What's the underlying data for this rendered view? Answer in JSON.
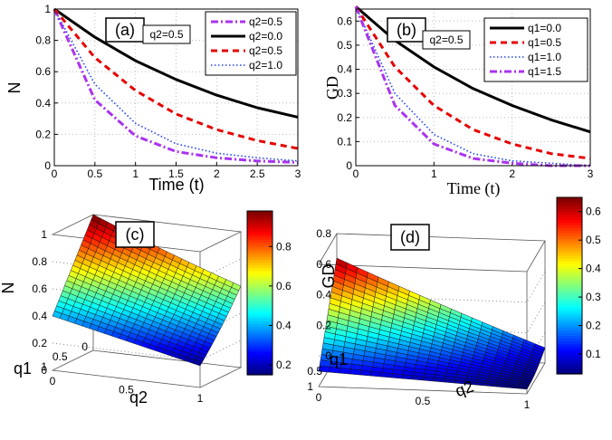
{
  "chart_data": [
    {
      "panel": "(a)",
      "type": "line",
      "annotation": "q2=0.5",
      "xlabel": "Time (t)",
      "ylabel": "N",
      "xlim": [
        0,
        3
      ],
      "ylim": [
        0,
        1
      ],
      "xticks": [
        "0",
        "0.5",
        "1",
        "1.5",
        "2",
        "2.5",
        "3"
      ],
      "yticks": [
        "0",
        "0.2",
        "0.4",
        "0.6",
        "0.8",
        "1"
      ],
      "legend": "top-right",
      "series": [
        {
          "name": "q2=0.5",
          "color": "#aa33ee",
          "style": "dashdot",
          "x": [
            0,
            0.5,
            1,
            1.5,
            2,
            2.5,
            3
          ],
          "y": [
            1.0,
            0.42,
            0.19,
            0.09,
            0.05,
            0.03,
            0.02
          ]
        },
        {
          "name": "q2=0.0",
          "color": "#000000",
          "style": "solid",
          "x": [
            0,
            0.5,
            1,
            1.5,
            2,
            2.5,
            3
          ],
          "y": [
            1.0,
            0.82,
            0.67,
            0.55,
            0.45,
            0.37,
            0.31
          ]
        },
        {
          "name": "q2=0.5",
          "color": "#e60000",
          "style": "dashed",
          "x": [
            0,
            0.5,
            1,
            1.5,
            2,
            2.5,
            3
          ],
          "y": [
            1.0,
            0.69,
            0.48,
            0.33,
            0.23,
            0.16,
            0.11
          ]
        },
        {
          "name": "q2=1.0",
          "color": "#2244ee",
          "style": "dotted",
          "x": [
            0,
            0.5,
            1,
            1.5,
            2,
            2.5,
            3
          ],
          "y": [
            1.0,
            0.52,
            0.27,
            0.14,
            0.08,
            0.05,
            0.03
          ]
        }
      ]
    },
    {
      "panel": "(b)",
      "type": "line",
      "annotation": "q2=0.5",
      "xlabel": "Time (t)",
      "ylabel": "GD",
      "xlim": [
        0,
        3
      ],
      "ylim": [
        0,
        0.65
      ],
      "xticks": [
        "0",
        "1",
        "2",
        "3"
      ],
      "yticks": [
        "0",
        "0.1",
        "0.2",
        "0.3",
        "0.4",
        "0.5",
        "0.6"
      ],
      "legend": "top-right",
      "series": [
        {
          "name": "q1=0.0",
          "color": "#000000",
          "style": "solid",
          "x": [
            0,
            0.5,
            1,
            1.5,
            2,
            2.5,
            3
          ],
          "y": [
            0.66,
            0.52,
            0.41,
            0.32,
            0.25,
            0.19,
            0.14
          ]
        },
        {
          "name": "q1=0.5",
          "color": "#e60000",
          "style": "dashed",
          "x": [
            0,
            0.5,
            1,
            1.5,
            2,
            2.5,
            3
          ],
          "y": [
            0.66,
            0.41,
            0.25,
            0.15,
            0.09,
            0.05,
            0.03
          ]
        },
        {
          "name": "q1=1.0",
          "color": "#2244ee",
          "style": "dotted",
          "x": [
            0,
            0.5,
            1,
            1.5,
            2,
            2.5,
            3
          ],
          "y": [
            0.66,
            0.3,
            0.13,
            0.05,
            0.02,
            0.01,
            0.0
          ]
        },
        {
          "name": "q1=1.5",
          "color": "#aa33ee",
          "style": "dashdot",
          "x": [
            0,
            0.5,
            1,
            1.5,
            2,
            2.5,
            3
          ],
          "y": [
            0.66,
            0.25,
            0.09,
            0.03,
            0.01,
            0.0,
            0.0
          ]
        }
      ]
    },
    {
      "panel": "(c)",
      "type": "surface",
      "xlabel": "q2",
      "ylabel": "q1",
      "zlabel": "N",
      "q2_ticks": [
        "0",
        "0.5",
        "1"
      ],
      "q1_ticks": [
        "0",
        "0.5",
        "1"
      ],
      "z_ticks": [
        "0",
        "0.2",
        "0.4",
        "0.6",
        "0.8",
        "1"
      ],
      "colorbar_ticks": [
        "0.2",
        "0.4",
        "0.6",
        "0.8"
      ],
      "colorbar_range": [
        0.15,
        0.98
      ],
      "corner_values": {
        "q1_0_q2_0": 1.0,
        "q1_0_q2_1": 0.6,
        "q1_1_q2_0": 0.4,
        "q1_1_q2_1": 0.16
      }
    },
    {
      "panel": "(d)",
      "type": "surface",
      "xlabel": "q2",
      "ylabel": "q1",
      "zlabel": "GD",
      "q2_ticks": [
        "0",
        "0.5",
        "1"
      ],
      "q1_ticks": [
        "0",
        "0.5",
        "1"
      ],
      "z_ticks": [
        "0",
        "0.2",
        "0.4",
        "0.6",
        "0.8"
      ],
      "colorbar_ticks": [
        "0.1",
        "0.2",
        "0.3",
        "0.4",
        "0.5",
        "0.6"
      ],
      "colorbar_range": [
        0.03,
        0.65
      ],
      "corner_values": {
        "q1_0_q2_0": 0.64,
        "q1_0_q2_1": 0.1,
        "q1_1_q2_0": 0.1,
        "q1_1_q2_1": 0.03
      }
    }
  ]
}
